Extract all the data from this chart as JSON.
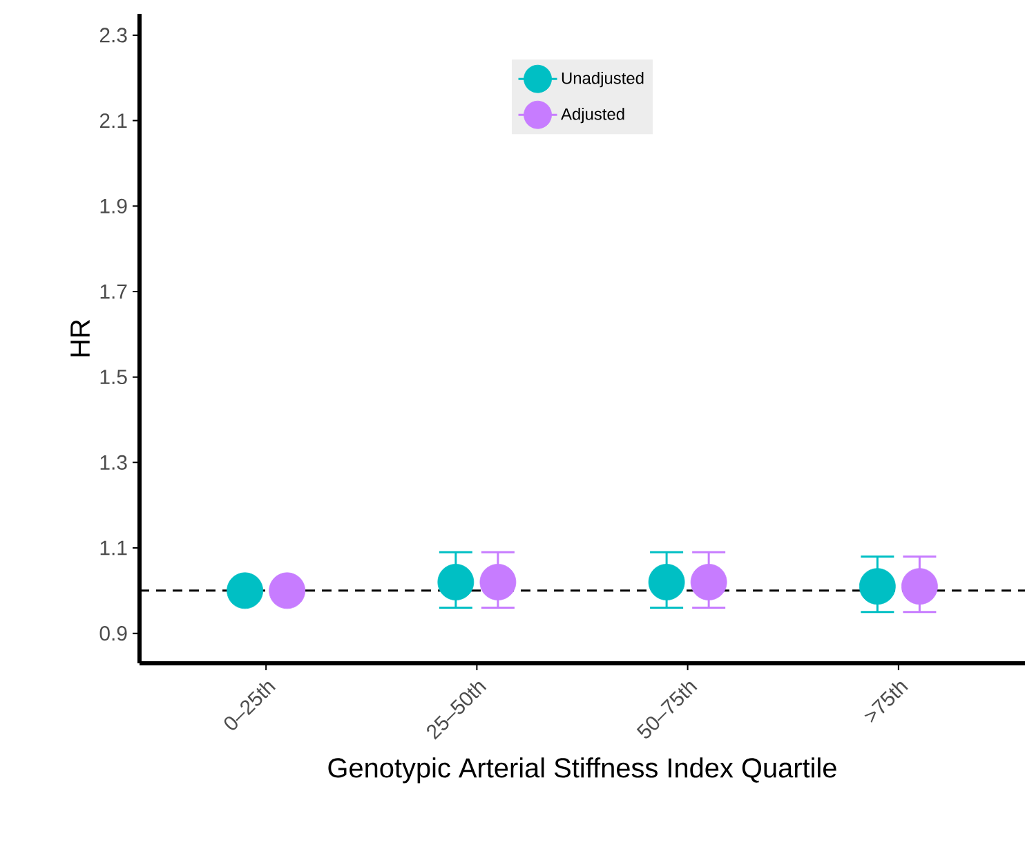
{
  "chart_data": {
    "type": "scatter",
    "xlabel": "Genotypic Arterial Stiffness Index Quartile",
    "ylabel": "HR",
    "categories": [
      "0–25th",
      "25–50th",
      "50–75th",
      ">75th"
    ],
    "series": [
      {
        "name": "Unadjusted",
        "color": "#00bfc4",
        "values": [
          1.0,
          1.02,
          1.02,
          1.01
        ],
        "errors": [
          null,
          [
            0.96,
            1.09
          ],
          [
            0.96,
            1.09
          ],
          [
            0.95,
            1.08
          ]
        ]
      },
      {
        "name": "Adjusted",
        "color": "#c77cff",
        "values": [
          1.0,
          1.02,
          1.02,
          1.01
        ],
        "errors": [
          null,
          [
            0.96,
            1.09
          ],
          [
            0.96,
            1.09
          ],
          [
            0.95,
            1.08
          ]
        ]
      }
    ],
    "ylim": [
      0.83,
      2.35
    ],
    "yticks": [
      0.9,
      1.1,
      1.3,
      1.5,
      1.7,
      1.9,
      2.1,
      2.3
    ],
    "ref_lines": [
      {
        "axis": "y",
        "value": 1.0,
        "line_style": "dashed",
        "color": "#000000"
      }
    ],
    "marker": "circle",
    "legend": "top",
    "grid": false
  }
}
